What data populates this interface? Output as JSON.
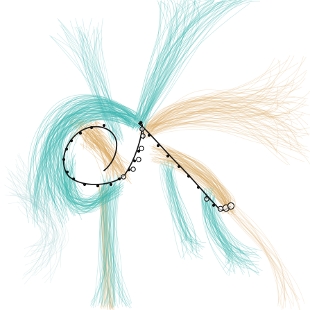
{
  "figure": {
    "description_free": true,
    "colors": {
      "background": "#ffffff",
      "teal_trajectories": "#3fb8b0",
      "tan_trajectories": "#d9a860",
      "stroke_path": "#111111",
      "vertex_fill": "#111111",
      "endpoint_ring": "#111111"
    },
    "icons": {
      "path_vertex": "filled-dot",
      "control_point": "hollow-circle",
      "path_end": "double-ring"
    }
  }
}
